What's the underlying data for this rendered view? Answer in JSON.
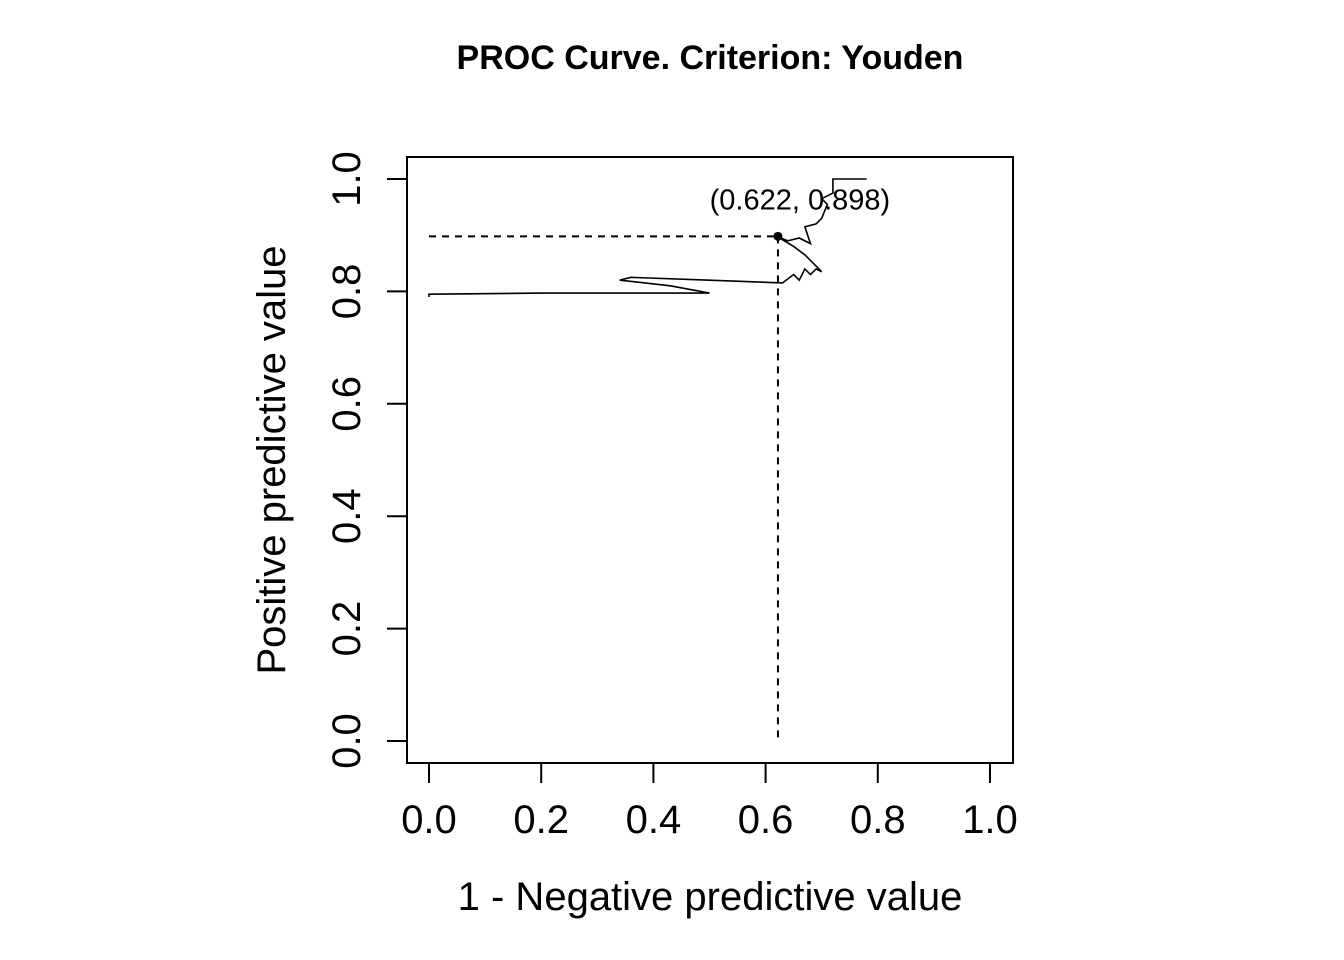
{
  "chart_data": {
    "type": "line",
    "title": "PROC Curve. Criterion: Youden",
    "xlabel": "1 - Negative predictive value",
    "ylabel": "Positive predictive value",
    "xlim": [
      0,
      1
    ],
    "ylim": [
      0,
      1
    ],
    "xticks": [
      "0.0",
      "0.2",
      "0.4",
      "0.6",
      "0.8",
      "1.0"
    ],
    "yticks": [
      "0.0",
      "0.2",
      "0.4",
      "0.6",
      "0.8",
      "1.0"
    ],
    "grid": false,
    "series": [
      {
        "x": [
          0.0,
          0.0,
          0.2,
          0.5,
          0.43,
          0.34,
          0.36,
          0.5,
          0.63,
          0.65,
          0.66,
          0.67,
          0.68,
          0.69,
          0.7,
          0.67,
          0.65,
          0.62,
          0.64,
          0.66,
          0.68,
          0.67,
          0.69,
          0.7,
          0.71,
          0.7,
          0.72,
          0.72,
          0.78
        ],
        "y": [
          0.79,
          0.795,
          0.797,
          0.797,
          0.81,
          0.82,
          0.825,
          0.82,
          0.815,
          0.83,
          0.82,
          0.84,
          0.83,
          0.84,
          0.835,
          0.865,
          0.88,
          0.898,
          0.89,
          0.895,
          0.885,
          0.915,
          0.92,
          0.93,
          0.955,
          0.965,
          0.975,
          1.0,
          1.0
        ]
      }
    ],
    "optimal_point": {
      "x": 0.622,
      "y": 0.898,
      "label": "(0.622, 0.898)"
    }
  }
}
